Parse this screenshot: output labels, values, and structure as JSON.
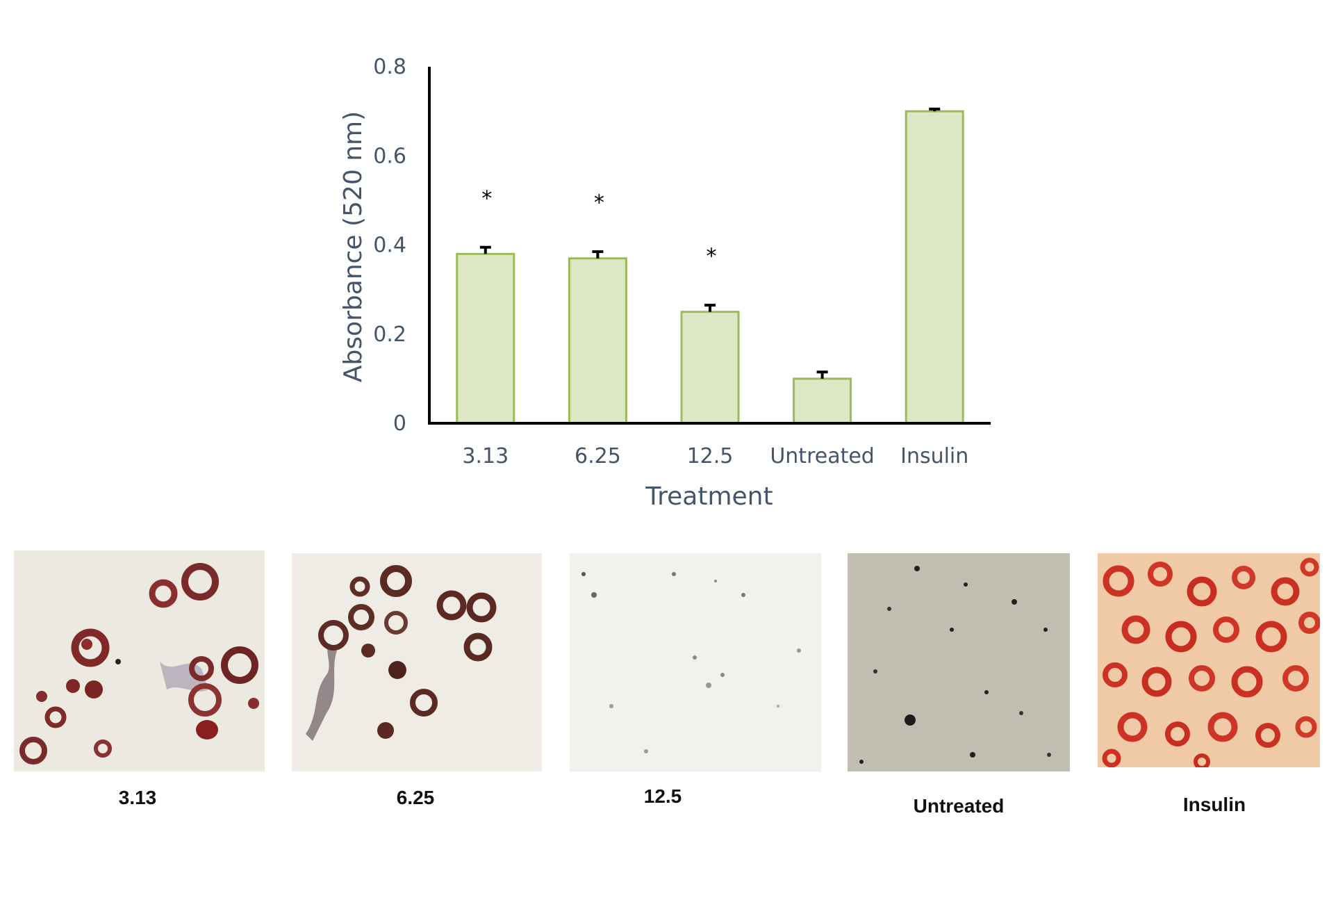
{
  "chart_data": {
    "type": "bar",
    "xlabel": "Treatment",
    "ylabel": "Absorbance (520 nm)",
    "ylim": [
      0,
      0.8
    ],
    "yticks": [
      "0",
      "0.2",
      "0.4",
      "0.6",
      "0.8"
    ],
    "categories": [
      "3.13",
      "6.25",
      "12.5",
      "Untreated",
      "Insulin"
    ],
    "values": [
      0.38,
      0.37,
      0.25,
      0.1,
      0.7
    ],
    "errors": [
      0.015,
      0.015,
      0.015,
      0.015,
      0.005
    ],
    "significance": [
      "*",
      "*",
      "*",
      "",
      ""
    ],
    "bar_color": "#dde7c6",
    "bar_edge_color": "#9bbb59",
    "axis_color": "#000000",
    "label_color": "#44546a",
    "grid": false
  },
  "panels": [
    {
      "caption": "3.13",
      "stain": "sparse dark red lipid droplets"
    },
    {
      "caption": "6.25",
      "stain": "dark red ring-shaped droplets"
    },
    {
      "caption": "12.5",
      "stain": "faint grey speckles"
    },
    {
      "caption": "Untreated",
      "stain": "grey background with black dots"
    },
    {
      "caption": "Insulin",
      "stain": "dense bright red droplets"
    }
  ]
}
